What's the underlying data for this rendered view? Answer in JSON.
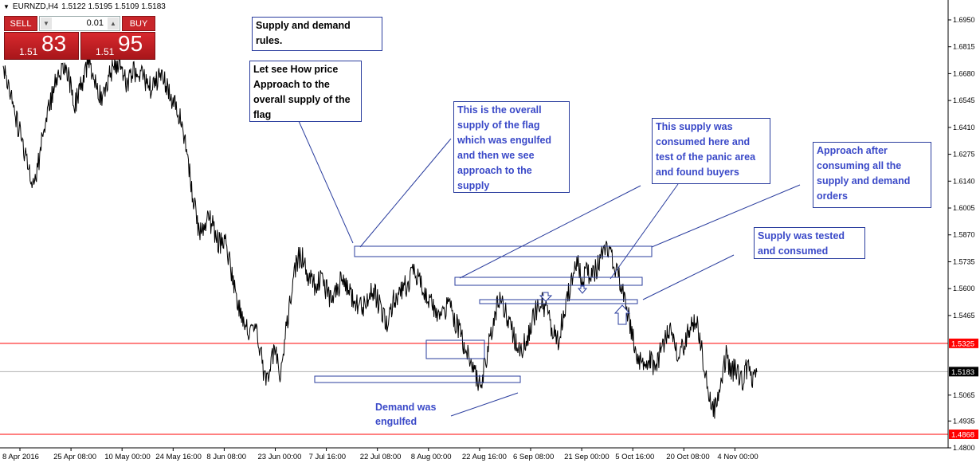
{
  "header": {
    "symbol": "EURNZD,H4",
    "quotes": "1.5122 1.5195 1.5109 1.5183"
  },
  "trade_panel": {
    "sell_label": "SELL",
    "buy_label": "BUY",
    "lot_value": "0.01",
    "bid_small": "1.51",
    "bid_big": "83",
    "ask_small": "1.51",
    "ask_big": "95",
    "color": "#c8252a"
  },
  "chart_data": {
    "type": "line",
    "title": "",
    "xlabel": "",
    "ylabel": "",
    "ylim": [
      1.48,
      1.705
    ],
    "y_ticks": [
      "1.6950",
      "1.6815",
      "1.6680",
      "1.6545",
      "1.6410",
      "1.6275",
      "1.6140",
      "1.6005",
      "1.5870",
      "1.5735",
      "1.5600",
      "1.5465",
      "1.5325",
      "1.5183",
      "1.5065",
      "1.4935",
      "1.4868",
      "1.4800"
    ],
    "x_ticks": [
      "8 Apr 2016",
      "25 Apr 08:00",
      "10 May 00:00",
      "24 May 16:00",
      "8 Jun 08:00",
      "23 Jun 00:00",
      "7 Jul 16:00",
      "22 Jul 08:00",
      "8 Aug 00:00",
      "22 Aug 16:00",
      "6 Sep 08:00",
      "21 Sep 00:00",
      "5 Oct 16:00",
      "20 Oct 08:00",
      "4 Nov 00:00"
    ],
    "series": [
      {
        "values": [
          1.672,
          1.664,
          1.649,
          1.641,
          1.631,
          1.622,
          1.611,
          1.625,
          1.641,
          1.652,
          1.661,
          1.67,
          1.674,
          1.664,
          1.652,
          1.66,
          1.669,
          1.673,
          1.665,
          1.656,
          1.662,
          1.669,
          1.674,
          1.67,
          1.664,
          1.667,
          1.67,
          1.668,
          1.663,
          1.66,
          1.664,
          1.667,
          1.662,
          1.655,
          1.649,
          1.641,
          1.626,
          1.606,
          1.592,
          1.587,
          1.597,
          1.59,
          1.582,
          1.586,
          1.576,
          1.563,
          1.551,
          1.544,
          1.536,
          1.544,
          1.531,
          1.516,
          1.52,
          1.529,
          1.517,
          1.536,
          1.556,
          1.57,
          1.578,
          1.57,
          1.564,
          1.56,
          1.566,
          1.559,
          1.555,
          1.559,
          1.564,
          1.561,
          1.556,
          1.553,
          1.55,
          1.555,
          1.559,
          1.554,
          1.548,
          1.541,
          1.553,
          1.557,
          1.56,
          1.562,
          1.568,
          1.566,
          1.56,
          1.556,
          1.55,
          1.544,
          1.548,
          1.553,
          1.545,
          1.538,
          1.53,
          1.524,
          1.518,
          1.512,
          1.522,
          1.536,
          1.548,
          1.555,
          1.549,
          1.54,
          1.533,
          1.528,
          1.534,
          1.541,
          1.55,
          1.556,
          1.547,
          1.54,
          1.532,
          1.543,
          1.555,
          1.566,
          1.572,
          1.564,
          1.569,
          1.566,
          1.572,
          1.578,
          1.58,
          1.572,
          1.566,
          1.556,
          1.545,
          1.533,
          1.524,
          1.518,
          1.525,
          1.52,
          1.526,
          1.534,
          1.538,
          1.531,
          1.526,
          1.534,
          1.539,
          1.546,
          1.534,
          1.516,
          1.504,
          1.499,
          1.514,
          1.526,
          1.518,
          1.52,
          1.513,
          1.52,
          1.515,
          1.518
        ]
      }
    ],
    "lines": [
      {
        "value": "1.5325",
        "color": "#ff0000"
      },
      {
        "value": "1.5183",
        "color": "#b0b0b0"
      },
      {
        "value": "1.4868",
        "color": "#ff0000"
      }
    ],
    "price_labels": [
      {
        "value": "1.5325",
        "color": "#ff0000"
      },
      {
        "value": "1.5183",
        "color": "#000000"
      },
      {
        "value": "1.4868",
        "color": "#ff0000"
      }
    ]
  },
  "annotations": {
    "rules": "Supply and demand rules.",
    "approach": "Let see How price Approach to the overall supply of the flag",
    "overall_supply": "This is the overall supply of the flag which was engulfed and then we see approach to the supply",
    "consumed": "This supply was consumed here and test of the panic area and found buyers",
    "after": "Approach after consuming all the supply and demand orders",
    "tested": "Supply  was tested and consumed",
    "demand": "Demand was engulfed"
  },
  "colors": {
    "annotation_blue": "#3a49c8",
    "box_border": "#2a3d9e",
    "price_line": "#000000"
  }
}
